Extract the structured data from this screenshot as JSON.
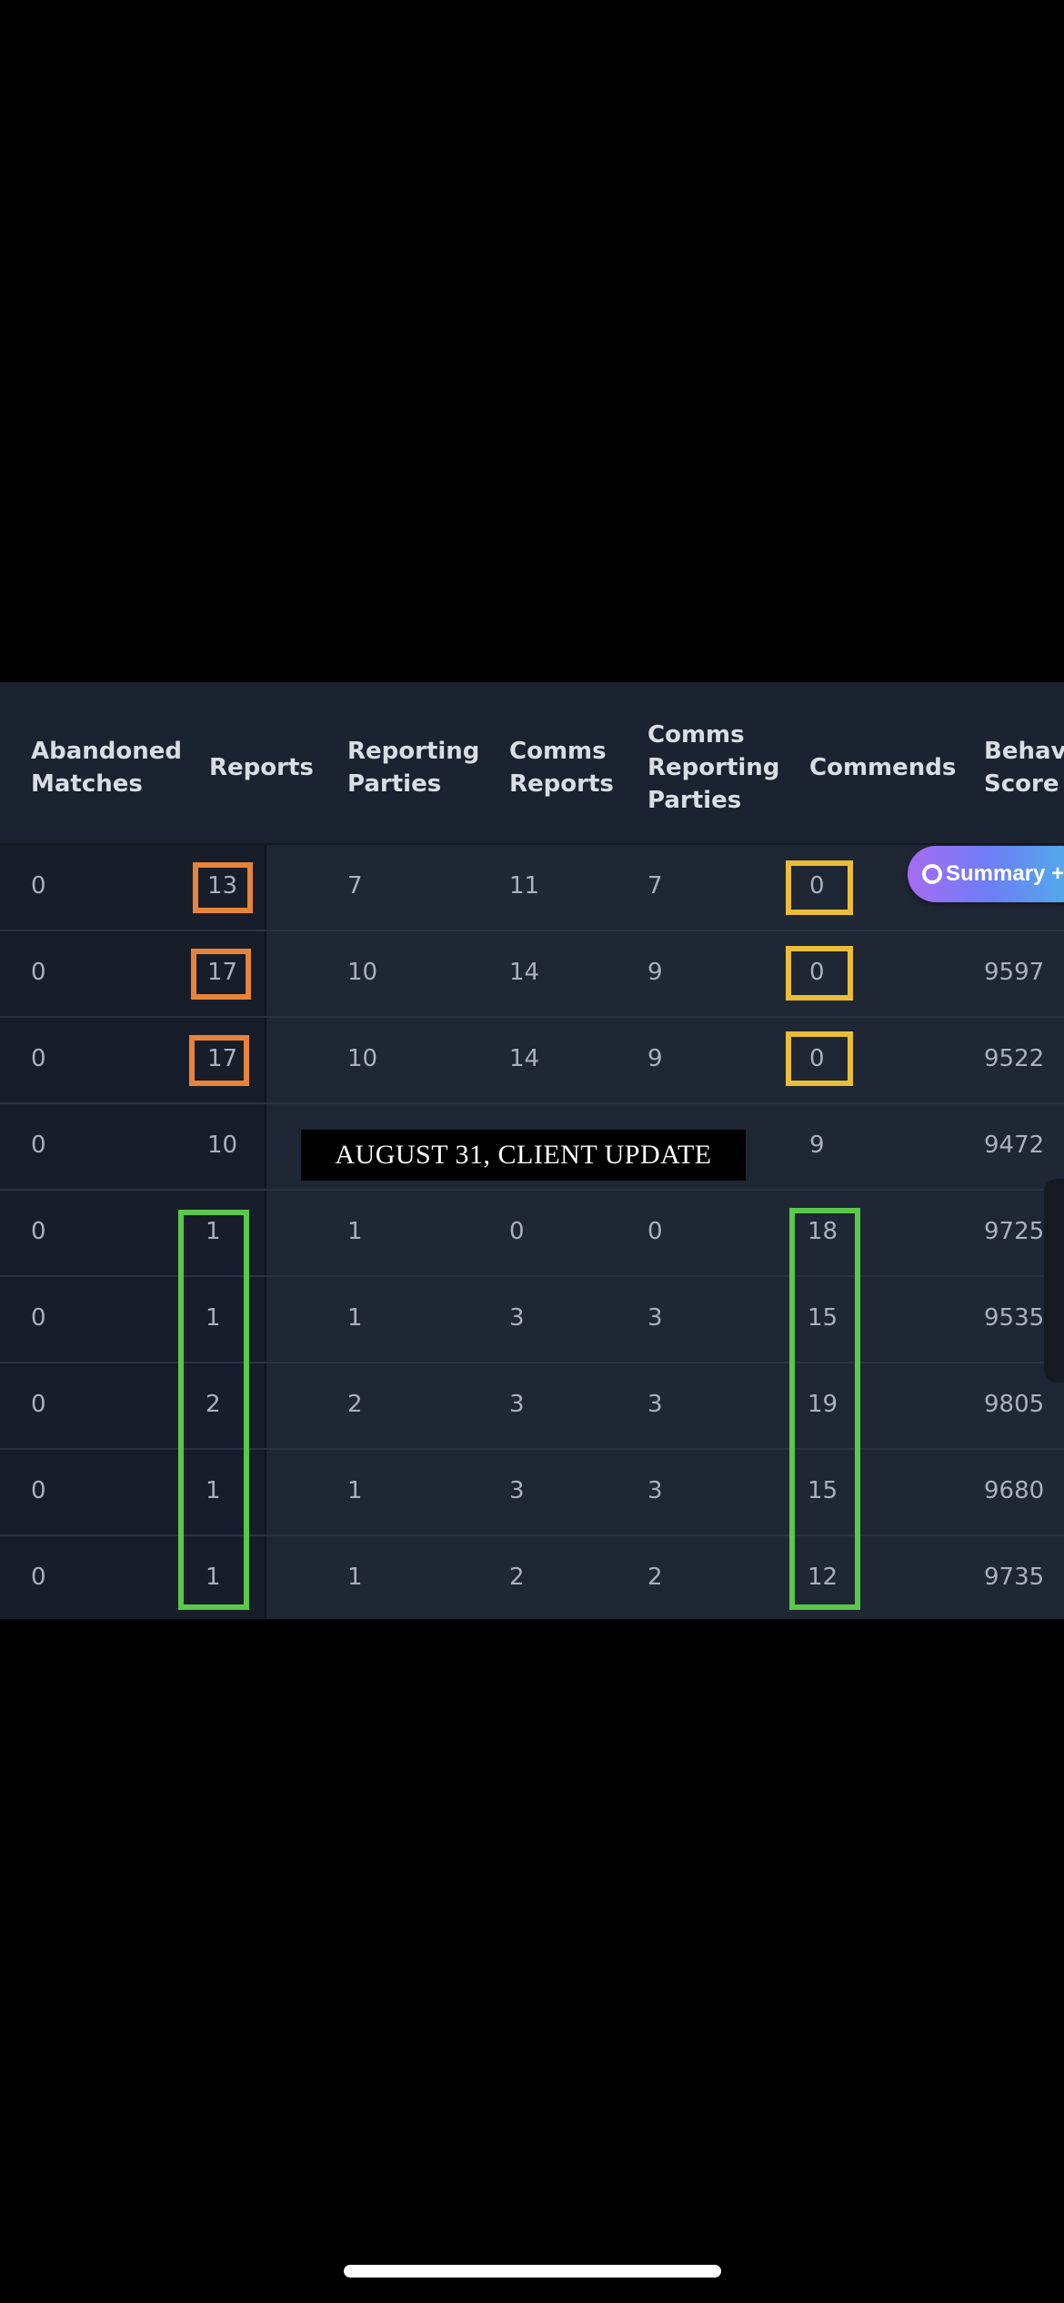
{
  "columns": [
    {
      "key": "abandoned",
      "label": "Abandoned\nMatches"
    },
    {
      "key": "reports",
      "label": "Reports"
    },
    {
      "key": "reporting_parties",
      "label": "Reporting\nParties"
    },
    {
      "key": "comms_reports",
      "label": "Comms\nReports"
    },
    {
      "key": "comms_reporting_parties",
      "label": "Comms\nReporting\nParties"
    },
    {
      "key": "commends",
      "label": "Commends"
    },
    {
      "key": "behavior_score",
      "label": "Behavio\nScore"
    }
  ],
  "rows": [
    [
      "0",
      "13",
      "7",
      "11",
      "7",
      "0",
      ""
    ],
    [
      "0",
      "17",
      "10",
      "14",
      "9",
      "0",
      "9597"
    ],
    [
      "0",
      "17",
      "10",
      "14",
      "9",
      "0",
      "9522"
    ],
    [
      "0",
      "10",
      "",
      "",
      "",
      "9",
      "9472"
    ],
    [
      "0",
      "1",
      "1",
      "0",
      "0",
      "18",
      "9725"
    ],
    [
      "0",
      "1",
      "1",
      "3",
      "3",
      "15",
      "9535"
    ],
    [
      "0",
      "2",
      "2",
      "3",
      "3",
      "19",
      "9805"
    ],
    [
      "0",
      "1",
      "1",
      "3",
      "3",
      "15",
      "9680"
    ],
    [
      "0",
      "1",
      "1",
      "2",
      "2",
      "12",
      "9735"
    ]
  ],
  "annotations": {
    "update_banner": "AUGUST 31, CLIENT UPDATE",
    "highlight_colors": {
      "orange": "#e8843a",
      "yellow": "#e9be38",
      "green": "#5ac84a"
    }
  },
  "summary_button": {
    "label": "Summary +",
    "icon": "summary-circle-icon"
  }
}
